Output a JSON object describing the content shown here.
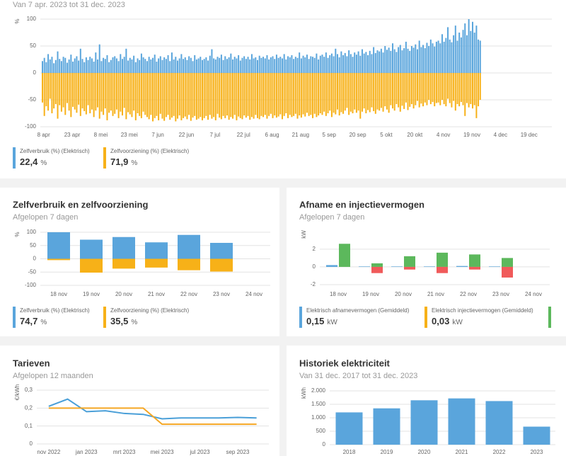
{
  "chart_data": [
    {
      "type": "bar",
      "subtitle": "Van 7 apr. 2023 tot 31 dec. 2023",
      "ylabel": "%",
      "xlim": [
        0,
        268
      ],
      "xticks": [
        {
          "value": 1,
          "label": "8 apr"
        },
        {
          "value": 16,
          "label": "23 apr"
        },
        {
          "value": 31,
          "label": "8 mei"
        },
        {
          "value": 46,
          "label": "23 mei"
        },
        {
          "value": 61,
          "label": "7 jun"
        },
        {
          "value": 76,
          "label": "22 jun"
        },
        {
          "value": 91,
          "label": "7 jul"
        },
        {
          "value": 106,
          "label": "22 jul"
        },
        {
          "value": 121,
          "label": "6 aug"
        },
        {
          "value": 136,
          "label": "21 aug"
        },
        {
          "value": 151,
          "label": "5 sep"
        },
        {
          "value": 166,
          "label": "20 sep"
        },
        {
          "value": 181,
          "label": "5 okt"
        },
        {
          "value": 196,
          "label": "20 okt"
        },
        {
          "value": 211,
          "label": "4 nov"
        },
        {
          "value": 226,
          "label": "19 nov"
        },
        {
          "value": 241,
          "label": "4 dec"
        },
        {
          "value": 256,
          "label": "19 dec"
        }
      ],
      "ylim": [
        -100,
        100
      ],
      "yticks": [
        100,
        50,
        0,
        -50,
        -100
      ],
      "grid": true,
      "x": [
        0,
        1,
        2,
        3,
        4,
        5,
        6,
        7,
        8,
        9,
        10,
        11,
        12,
        13,
        14,
        15,
        16,
        17,
        18,
        19,
        20,
        21,
        22,
        23,
        24,
        25,
        26,
        27,
        28,
        29,
        30,
        31,
        32,
        33,
        34,
        35,
        36,
        37,
        38,
        39,
        40,
        41,
        42,
        43,
        44,
        45,
        46,
        47,
        48,
        49,
        50,
        51,
        52,
        53,
        54,
        55,
        56,
        57,
        58,
        59,
        60,
        61,
        62,
        63,
        64,
        65,
        66,
        67,
        68,
        69,
        70,
        71,
        72,
        73,
        74,
        75,
        76,
        77,
        78,
        79,
        80,
        81,
        82,
        83,
        84,
        85,
        86,
        87,
        88,
        89,
        90,
        91,
        92,
        93,
        94,
        95,
        96,
        97,
        98,
        99,
        100,
        101,
        102,
        103,
        104,
        105,
        106,
        107,
        108,
        109,
        110,
        111,
        112,
        113,
        114,
        115,
        116,
        117,
        118,
        119,
        120,
        121,
        122,
        123,
        124,
        125,
        126,
        127,
        128,
        129,
        130,
        131,
        132,
        133,
        134,
        135,
        136,
        137,
        138,
        139,
        140,
        141,
        142,
        143,
        144,
        145,
        146,
        147,
        148,
        149,
        150,
        151,
        152,
        153,
        154,
        155,
        156,
        157,
        158,
        159,
        160,
        161,
        162,
        163,
        164,
        165,
        166,
        167,
        168,
        169,
        170,
        171,
        172,
        173,
        174,
        175,
        176,
        177,
        178,
        179,
        180,
        181,
        182,
        183,
        184,
        185,
        186,
        187,
        188,
        189,
        190,
        191,
        192,
        193,
        194,
        195,
        196,
        197,
        198,
        199,
        200,
        201,
        202,
        203,
        204,
        205,
        206,
        207,
        208,
        209,
        210,
        211,
        212,
        213,
        214,
        215,
        216,
        217,
        218,
        219,
        220,
        221,
        222,
        223,
        224,
        225,
        226,
        227,
        228,
        229,
        230
      ],
      "series": [
        {
          "name": "Zelfverbruik (%) (Elektrisch)",
          "color": "#5aa5dc",
          "summary": "22,4",
          "unit": "%",
          "values": [
            22,
            28,
            20,
            35,
            25,
            30,
            18,
            24,
            40,
            26,
            22,
            30,
            28,
            19,
            25,
            34,
            21,
            27,
            31,
            23,
            45,
            26,
            20,
            29,
            24,
            30,
            27,
            21,
            38,
            25,
            53,
            22,
            28,
            26,
            33,
            20,
            24,
            29,
            31,
            27,
            22,
            35,
            26,
            30,
            45,
            23,
            28,
            25,
            32,
            20,
            27,
            24,
            36,
            29,
            26,
            22,
            30,
            25,
            28,
            34,
            21,
            27,
            31,
            24,
            29,
            26,
            33,
            22,
            38,
            25,
            30,
            23,
            27,
            35,
            26,
            29,
            24,
            31,
            28,
            22,
            33,
            25,
            27,
            30,
            24,
            26,
            29,
            23,
            32,
            44,
            27,
            25,
            30,
            28,
            34,
            24,
            31,
            26,
            29,
            36,
            25,
            30,
            27,
            33,
            23,
            28,
            31,
            26,
            30,
            25,
            35,
            27,
            29,
            24,
            32,
            28,
            30,
            27,
            33,
            25,
            29,
            31,
            26,
            34,
            28,
            30,
            27,
            35,
            25,
            31,
            29,
            33,
            26,
            30,
            28,
            38,
            27,
            32,
            29,
            34,
            26,
            31,
            30,
            28,
            36,
            25,
            32,
            34,
            30,
            38,
            28,
            33,
            36,
            31,
            45,
            35,
            29,
            40,
            33,
            37,
            31,
            42,
            35,
            30,
            38,
            34,
            40,
            32,
            44,
            36,
            39,
            33,
            41,
            35,
            48,
            37,
            42,
            40,
            45,
            38,
            50,
            43,
            47,
            41,
            55,
            44,
            39,
            48,
            52,
            42,
            46,
            58,
            45,
            41,
            50,
            47,
            53,
            44,
            60,
            48,
            52,
            46,
            56,
            50,
            62,
            55,
            49,
            58,
            60,
            55,
            72,
            58,
            65,
            85,
            62,
            57,
            70,
            88,
            60,
            75,
            66,
            80,
            92,
            70,
            100,
            78,
            95,
            75,
            88,
            62,
            60
          ]
        },
        {
          "name": "Zelfvoorziening (%) (Elektrisch)",
          "color": "#f7b118",
          "summary": "71,9",
          "unit": "%",
          "values": [
            -55,
            -80,
            -62,
            -70,
            -48,
            -75,
            -66,
            -58,
            -85,
            -60,
            -72,
            -64,
            -78,
            -56,
            -70,
            -82,
            -63,
            -68,
            -74,
            -59,
            -80,
            -66,
            -71,
            -77,
            -60,
            -75,
            -68,
            -82,
            -70,
            -64,
            -85,
            -72,
            -78,
            -66,
            -88,
            -74,
            -70,
            -80,
            -76,
            -68,
            -84,
            -72,
            -79,
            -65,
            -86,
            -73,
            -77,
            -82,
            -70,
            -88,
            -75,
            -80,
            -84,
            -72,
            -78,
            -82,
            -86,
            -78,
            -90,
            -84,
            -80,
            -88,
            -76,
            -85,
            -89,
            -82,
            -78,
            -87,
            -83,
            -80,
            -90,
            -85,
            -79,
            -88,
            -84,
            -81,
            -86,
            -78,
            -89,
            -83,
            -80,
            -87,
            -85,
            -82,
            -88,
            -84,
            -80,
            -87,
            -78,
            -85,
            -82,
            -88,
            -76,
            -83,
            -86,
            -80,
            -84,
            -79,
            -87,
            -82,
            -85,
            -78,
            -88,
            -81,
            -84,
            -86,
            -79,
            -83,
            -80,
            -87,
            -82,
            -85,
            -78,
            -84,
            -86,
            -80,
            -82,
            -78,
            -85,
            -80,
            -76,
            -84,
            -79,
            -83,
            -81,
            -77,
            -86,
            -80,
            -75,
            -84,
            -78,
            -82,
            -80,
            -76,
            -85,
            -79,
            -83,
            -77,
            -81,
            -74,
            -80,
            -78,
            -84,
            -76,
            -82,
            -79,
            -75,
            -78,
            -72,
            -80,
            -75,
            -70,
            -82,
            -74,
            -77,
            -68,
            -79,
            -73,
            -76,
            -70,
            -65,
            -78,
            -72,
            -75,
            -68,
            -74,
            -70,
            -85,
            -72,
            -66,
            -75,
            -69,
            -73,
            -64,
            -71,
            -76,
            -68,
            -70,
            -65,
            -72,
            -62,
            -68,
            -74,
            -60,
            -66,
            -70,
            -58,
            -64,
            -72,
            -61,
            -67,
            -55,
            -69,
            -63,
            -58,
            -66,
            -60,
            -52,
            -64,
            -57,
            -62,
            -55,
            -60,
            -50,
            -58,
            -54,
            -62,
            -56,
            -55,
            -60,
            -50,
            -58,
            -62,
            -48,
            -56,
            -64,
            -52,
            -70,
            -58,
            -62,
            -54,
            -60,
            -80,
            -56,
            -64,
            -58,
            -66,
            -60,
            -84,
            -62,
            -50
          ]
        }
      ]
    },
    {
      "type": "bar",
      "title": "Zelfverbruik en zelfvoorziening",
      "subtitle": "Afgelopen 7 dagen",
      "ylabel": "%",
      "categories": [
        "18 nov",
        "19 nov",
        "20 nov",
        "21 nov",
        "22 nov",
        "23 nov",
        "24 nov"
      ],
      "ylim": [
        -100,
        100
      ],
      "yticks": [
        100,
        50,
        0,
        -50,
        -100
      ],
      "grid": true,
      "series": [
        {
          "name": "Zelfverbruik (%) (Elektrisch)",
          "color": "#5aa5dc",
          "summary": "74,7",
          "unit": "%",
          "values": [
            100,
            72,
            82,
            62,
            90,
            60,
            null
          ]
        },
        {
          "name": "Zelfvoorziening (%) (Elektrisch)",
          "color": "#f7b118",
          "summary": "35,5",
          "unit": "%",
          "values": [
            -5,
            -52,
            -37,
            -33,
            -43,
            -48,
            null
          ]
        }
      ]
    },
    {
      "type": "bar",
      "title": "Afname en injectievermogen",
      "subtitle": "Afgelopen 7 dagen",
      "ylabel": "kW",
      "categories": [
        "18 nov",
        "19 nov",
        "20 nov",
        "21 nov",
        "22 nov",
        "23 nov",
        "24 nov"
      ],
      "ylim": [
        -2,
        3.9
      ],
      "yticks": [
        2,
        0,
        -2
      ],
      "grid": true,
      "series": [
        {
          "name": "Elektrisch afnamevermogen (Gemiddeld)",
          "color": "#5aa5dc",
          "summary": "0,15",
          "unit": "kW",
          "values": [
            0.2,
            0.05,
            0.05,
            0.05,
            0.1,
            0.05,
            null
          ]
        },
        {
          "name": "Elektrisch injectievermogen (Gemiddeld)",
          "color": "#f7b118",
          "summary": "0,03",
          "unit": "kW",
          "values": [
            0,
            0,
            0,
            0,
            0,
            0,
            null
          ]
        },
        {
          "color": "#5cb85c",
          "values": [
            2.6,
            0.4,
            1.2,
            1.6,
            1.4,
            1.0,
            null
          ]
        },
        {
          "color": "#f05a5a",
          "values": [
            0,
            -0.7,
            -0.3,
            -0.7,
            -0.3,
            -1.2,
            null
          ]
        }
      ]
    },
    {
      "type": "line",
      "title": "Tarieven",
      "subtitle": "Afgelopen 12 maanden",
      "ylabel": "€/kWh",
      "categories": [
        "nov 2022",
        null,
        "jan 2023",
        null,
        "mrt 2023",
        null,
        "mei 2023",
        null,
        "jul 2023",
        null,
        "sep 2023",
        null
      ],
      "ylim": [
        0,
        0.3
      ],
      "yticks": [
        {
          "value": 0.3,
          "label": "0,3"
        },
        {
          "value": 0.2,
          "label": "0,2"
        },
        {
          "value": 0.1,
          "label": "0,1"
        },
        0
      ],
      "grid": true,
      "series": [
        {
          "color": "#4a9fd8",
          "values": [
            0.21,
            0.25,
            0.18,
            0.185,
            0.17,
            0.165,
            0.14,
            0.145,
            0.145,
            0.145,
            0.148,
            0.145
          ]
        },
        {
          "color": "#f5a623",
          "values": [
            0.2,
            0.2,
            0.2,
            0.2,
            0.2,
            0.2,
            0.11,
            0.11,
            0.11,
            0.11,
            0.11,
            0.11
          ]
        }
      ]
    },
    {
      "type": "bar",
      "title": "Historiek elektriciteit",
      "subtitle": "Van 31 dec. 2017 tot 31 dec. 2023",
      "ylabel": "kWh",
      "categories": [
        "2018",
        "2019",
        "2020",
        "2021",
        "2022",
        "2023"
      ],
      "ylim": [
        0,
        2000
      ],
      "yticks": [
        {
          "value": 2000,
          "label": "2.000"
        },
        {
          "value": 1500,
          "label": "1.500"
        },
        {
          "value": 1000,
          "label": "1.000"
        },
        500,
        0
      ],
      "grid": true,
      "series": [
        {
          "color": "#5aa5dc",
          "values": [
            1200,
            1350,
            1650,
            1720,
            1620,
            670
          ]
        }
      ]
    }
  ]
}
